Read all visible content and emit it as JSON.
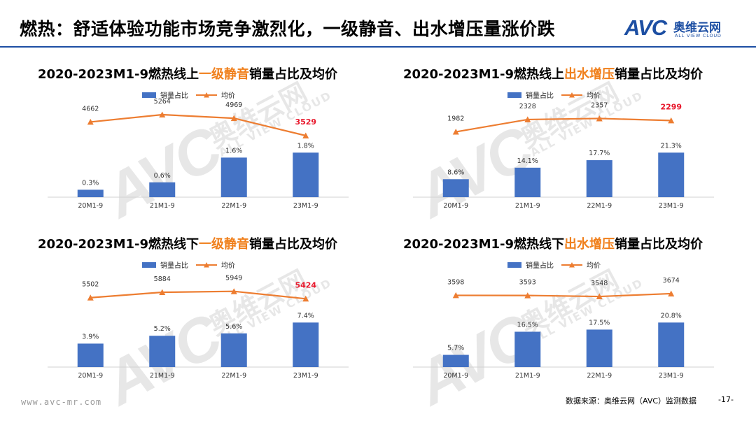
{
  "header": {
    "title": "燃热：舒适体验功能市场竞争激烈化，一级静音、出水增压量涨价跌",
    "logo_mark": "AVC",
    "logo_cn": "奥维云网",
    "logo_en": "ALL VIEW CLOUD"
  },
  "watermark": {
    "mark": "AVC",
    "cn": "奥维云网",
    "en": "ALL VIEW CLOUD"
  },
  "colors": {
    "bar": "#4472c4",
    "line": "#ed7d31",
    "highlight_label": "#e8182c",
    "title_highlight": "#f07f1b",
    "brand": "#1d4fa3"
  },
  "chart_data": [
    {
      "type": "bar",
      "title_prefix": "2020-2023M1-9燃热线上",
      "title_highlight": "一级静音",
      "title_suffix": "销量占比及均价",
      "categories": [
        "20M1-9",
        "21M1-9",
        "22M1-9",
        "23M1-9"
      ],
      "series": [
        {
          "name": "销量占比",
          "type": "bar",
          "values": [
            0.3,
            0.6,
            1.6,
            1.8
          ],
          "labels": [
            "0.3%",
            "0.6%",
            "1.6%",
            "1.8%"
          ]
        },
        {
          "name": "均价",
          "type": "line",
          "values": [
            4662,
            5264,
            4969,
            3529
          ],
          "labels": [
            "4662",
            "5264",
            "4969",
            "3529"
          ]
        }
      ],
      "highlight_index": 3,
      "legend_position": "top"
    },
    {
      "type": "bar",
      "title_prefix": "2020-2023M1-9燃热线上",
      "title_highlight": "出水增压",
      "title_suffix": "销量占比及均价",
      "categories": [
        "20M1-9",
        "21M1-9",
        "22M1-9",
        "23M1-9"
      ],
      "series": [
        {
          "name": "销量占比",
          "type": "bar",
          "values": [
            8.6,
            14.1,
            17.7,
            21.3
          ],
          "labels": [
            "8.6%",
            "14.1%",
            "17.7%",
            "21.3%"
          ]
        },
        {
          "name": "均价",
          "type": "line",
          "values": [
            1982,
            2328,
            2357,
            2299
          ],
          "labels": [
            "1982",
            "2328",
            "2357",
            "2299"
          ]
        }
      ],
      "highlight_index": 3,
      "legend_position": "top"
    },
    {
      "type": "bar",
      "title_prefix": "2020-2023M1-9燃热线下",
      "title_highlight": "一级静音",
      "title_suffix": "销量占比及均价",
      "categories": [
        "20M1-9",
        "21M1-9",
        "22M1-9",
        "23M1-9"
      ],
      "series": [
        {
          "name": "销量占比",
          "type": "bar",
          "values": [
            3.9,
            5.2,
            5.6,
            7.4
          ],
          "labels": [
            "3.9%",
            "5.2%",
            "5.6%",
            "7.4%"
          ]
        },
        {
          "name": "均价",
          "type": "line",
          "values": [
            5502,
            5884,
            5949,
            5424
          ],
          "labels": [
            "5502",
            "5884",
            "5949",
            "5424"
          ]
        }
      ],
      "highlight_index": 3,
      "legend_position": "top"
    },
    {
      "type": "bar",
      "title_prefix": "2020-2023M1-9燃热线下",
      "title_highlight": "出水增压",
      "title_suffix": "销量占比及均价",
      "categories": [
        "20M1-9",
        "21M1-9",
        "22M1-9",
        "23M1-9"
      ],
      "series": [
        {
          "name": "销量占比",
          "type": "bar",
          "values": [
            5.7,
            16.5,
            17.5,
            20.8
          ],
          "labels": [
            "5.7%",
            "16.5%",
            "17.5%",
            "20.8%"
          ]
        },
        {
          "name": "均价",
          "type": "line",
          "values": [
            3598,
            3593,
            3548,
            3674
          ],
          "labels": [
            "3598",
            "3593",
            "3548",
            "3674"
          ]
        }
      ],
      "highlight_index": null,
      "legend_position": "top"
    }
  ],
  "footer": {
    "website": "www.avc-mr.com",
    "source": "数据来源：奥维云网（AVC）监测数据",
    "page": "-17-"
  }
}
